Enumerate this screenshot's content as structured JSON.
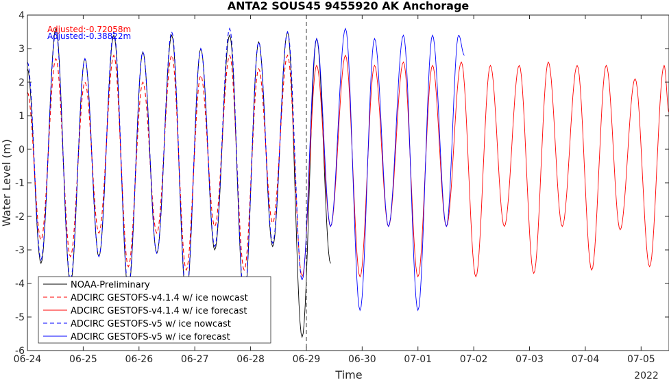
{
  "chart_data": {
    "type": "line",
    "title": "ANTA2 SOUS45 9455920 AK Anchorage",
    "xlabel": "Time",
    "ylabel": "Water Level (m)",
    "year_label": "2022",
    "x_ticks": [
      "06-24",
      "06-25",
      "06-26",
      "06-27",
      "06-28",
      "06-29",
      "06-30",
      "07-01",
      "07-02",
      "07-03",
      "07-04",
      "07-05"
    ],
    "xlim": [
      "2022-06-24 00:00",
      "2022-07-05 12:00"
    ],
    "ylim": [
      -6,
      4
    ],
    "y_ticks": [
      -6,
      -5,
      -4,
      -3,
      -2,
      -1,
      0,
      1,
      2,
      3,
      4
    ],
    "grid": false,
    "legend_position": "bottom-left",
    "nowcast_forecast_divider": "2022-06-29 00:00",
    "annotations": [
      {
        "text": "Adjusted:-0.72058m",
        "color": "#ff0000"
      },
      {
        "text": "Adjusted:-0.38822m",
        "color": "#0000ff"
      }
    ],
    "series": [
      {
        "name": "NOAA-Preliminary",
        "color": "#000000",
        "dash": "solid",
        "extrema": [
          [
            "2022-06-24 00:00",
            2.4
          ],
          [
            "2022-06-24 05:50",
            -3.4
          ],
          [
            "2022-06-24 12:15",
            3.6
          ],
          [
            "2022-06-24 18:30",
            -4.0
          ],
          [
            "2022-06-25 00:45",
            2.7
          ],
          [
            "2022-06-25 06:45",
            -3.2
          ],
          [
            "2022-06-25 13:10",
            3.4
          ],
          [
            "2022-06-25 19:25",
            -4.2
          ],
          [
            "2022-06-26 01:40",
            2.9
          ],
          [
            "2022-06-26 07:40",
            -3.1
          ],
          [
            "2022-06-26 14:05",
            3.4
          ],
          [
            "2022-06-26 20:20",
            -4.4
          ],
          [
            "2022-06-27 02:35",
            3.0
          ],
          [
            "2022-06-27 08:35",
            -3.0
          ],
          [
            "2022-06-27 15:00",
            3.4
          ],
          [
            "2022-06-27 21:15",
            -4.5
          ],
          [
            "2022-06-28 03:30",
            3.2
          ],
          [
            "2022-06-28 09:30",
            -2.9
          ],
          [
            "2022-06-28 15:55",
            3.5
          ],
          [
            "2022-06-28 22:10",
            -5.6
          ],
          [
            "2022-06-29 04:25",
            3.3
          ],
          [
            "2022-06-29 10:25",
            -3.4
          ]
        ]
      },
      {
        "name": "ADCIRC GESTOFS-v4.1.4 w/ ice nowcast",
        "color": "#ff0000",
        "dash": "dashed",
        "extrema": [
          [
            "2022-06-24 00:00",
            1.7
          ],
          [
            "2022-06-24 05:50",
            -2.7
          ],
          [
            "2022-06-24 12:15",
            2.7
          ],
          [
            "2022-06-24 18:30",
            -3.2
          ],
          [
            "2022-06-25 00:45",
            2.0
          ],
          [
            "2022-06-25 06:45",
            -2.5
          ],
          [
            "2022-06-25 13:10",
            2.8
          ],
          [
            "2022-06-25 19:25",
            -3.5
          ],
          [
            "2022-06-26 01:40",
            2.0
          ],
          [
            "2022-06-26 07:40",
            -2.5
          ],
          [
            "2022-06-26 14:05",
            2.8
          ],
          [
            "2022-06-26 20:20",
            -3.6
          ],
          [
            "2022-06-27 02:35",
            2.2
          ],
          [
            "2022-06-27 08:35",
            -2.3
          ],
          [
            "2022-06-27 15:00",
            2.8
          ],
          [
            "2022-06-27 21:15",
            -3.6
          ],
          [
            "2022-06-28 03:30",
            2.4
          ],
          [
            "2022-06-28 09:30",
            -2.2
          ],
          [
            "2022-06-28 15:55",
            2.8
          ],
          [
            "2022-06-28 22:10",
            -3.8
          ]
        ]
      },
      {
        "name": "ADCIRC GESTOFS-v4.1.4 w/ ice forecast",
        "color": "#ff0000",
        "dash": "solid",
        "extrema": [
          [
            "2022-06-28 22:10",
            -3.8
          ],
          [
            "2022-06-29 04:25",
            2.5
          ],
          [
            "2022-06-29 10:25",
            -2.3
          ],
          [
            "2022-06-29 16:50",
            2.8
          ],
          [
            "2022-06-29 23:05",
            -3.8
          ],
          [
            "2022-06-30 05:20",
            2.5
          ],
          [
            "2022-06-30 11:20",
            -2.3
          ],
          [
            "2022-06-30 17:45",
            2.6
          ],
          [
            "2022-07-01 00:00",
            -3.8
          ],
          [
            "2022-07-01 06:15",
            2.5
          ],
          [
            "2022-07-01 12:15",
            -2.3
          ],
          [
            "2022-07-01 18:40",
            2.6
          ],
          [
            "2022-07-02 00:55",
            -3.8
          ],
          [
            "2022-07-02 07:10",
            2.5
          ],
          [
            "2022-07-02 13:10",
            -2.3
          ],
          [
            "2022-07-02 19:35",
            2.5
          ],
          [
            "2022-07-03 01:50",
            -3.7
          ],
          [
            "2022-07-03 08:05",
            2.6
          ],
          [
            "2022-07-03 14:05",
            -2.3
          ],
          [
            "2022-07-03 20:30",
            2.5
          ],
          [
            "2022-07-04 02:45",
            -3.6
          ],
          [
            "2022-07-04 09:00",
            2.5
          ],
          [
            "2022-07-04 15:00",
            -2.4
          ],
          [
            "2022-07-04 21:25",
            2.1
          ],
          [
            "2022-07-05 03:40",
            -3.5
          ],
          [
            "2022-07-05 09:55",
            2.5
          ],
          [
            "2022-07-05 12:00",
            1.1
          ]
        ]
      },
      {
        "name": "ADCIRC GESTOFS-v5 w/ ice nowcast",
        "color": "#0000ff",
        "dash": "dashed",
        "extrema": [
          [
            "2022-06-24 00:00",
            2.6
          ],
          [
            "2022-06-24 05:50",
            -3.3
          ],
          [
            "2022-06-24 12:15",
            3.5
          ],
          [
            "2022-06-24 18:30",
            -3.9
          ],
          [
            "2022-06-25 00:45",
            2.7
          ],
          [
            "2022-06-25 06:45",
            -3.2
          ],
          [
            "2022-06-25 13:10",
            3.5
          ],
          [
            "2022-06-25 19:25",
            -4.1
          ],
          [
            "2022-06-26 01:40",
            2.9
          ],
          [
            "2022-06-26 07:40",
            -3.1
          ],
          [
            "2022-06-26 14:05",
            3.5
          ],
          [
            "2022-06-26 20:20",
            -4.3
          ],
          [
            "2022-06-27 02:35",
            3.0
          ],
          [
            "2022-06-27 08:35",
            -2.9
          ],
          [
            "2022-06-27 15:00",
            3.6
          ],
          [
            "2022-06-27 21:15",
            -4.4
          ],
          [
            "2022-06-28 03:30",
            3.2
          ],
          [
            "2022-06-28 09:30",
            -2.8
          ],
          [
            "2022-06-28 15:55",
            3.5
          ],
          [
            "2022-06-28 22:10",
            -3.9
          ]
        ]
      },
      {
        "name": "ADCIRC GESTOFS-v5 w/ ice forecast",
        "color": "#0000ff",
        "dash": "solid",
        "extrema": [
          [
            "2022-06-28 22:10",
            -3.9
          ],
          [
            "2022-06-29 04:25",
            3.3
          ],
          [
            "2022-06-29 10:25",
            -2.3
          ],
          [
            "2022-06-29 16:50",
            3.6
          ],
          [
            "2022-06-29 23:05",
            -4.8
          ],
          [
            "2022-06-30 05:20",
            3.3
          ],
          [
            "2022-06-30 11:20",
            -2.3
          ],
          [
            "2022-06-30 17:45",
            3.4
          ],
          [
            "2022-07-01 00:00",
            -4.8
          ],
          [
            "2022-07-01 06:15",
            3.4
          ],
          [
            "2022-07-01 12:15",
            -2.3
          ],
          [
            "2022-07-01 17:30",
            3.4
          ],
          [
            "2022-07-01 20:00",
            2.8
          ]
        ]
      }
    ]
  }
}
